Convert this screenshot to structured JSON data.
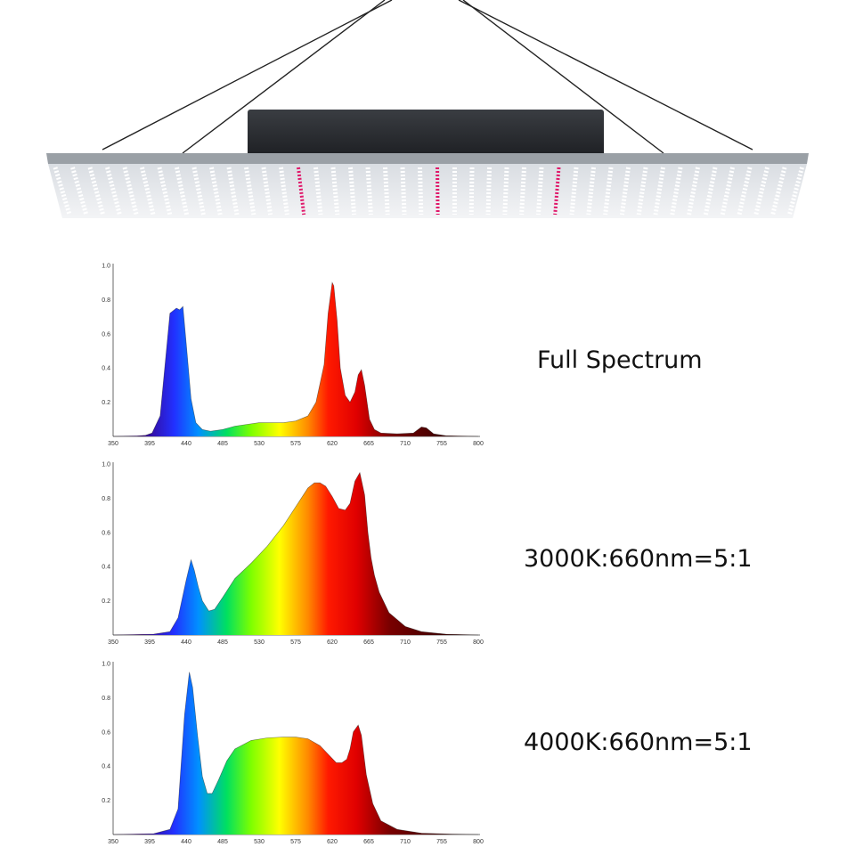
{
  "chart_data": [
    {
      "type": "area",
      "title": "Full Spectrum",
      "xticks": [
        "350",
        "395",
        "440",
        "485",
        "530",
        "575",
        "620",
        "665",
        "710",
        "755",
        "800"
      ],
      "yticks": [
        "1.0",
        "0.8",
        "0.6",
        "0.4",
        "0.2"
      ],
      "xlim": [
        350,
        800
      ],
      "ylim": [
        0,
        1.0
      ],
      "x": [
        350,
        380,
        390,
        398,
        408,
        420,
        428,
        432,
        436,
        440,
        446,
        452,
        460,
        470,
        485,
        500,
        530,
        560,
        575,
        590,
        600,
        610,
        615,
        620,
        622,
        626,
        630,
        636,
        642,
        648,
        652,
        656,
        660,
        666,
        672,
        680,
        700,
        720,
        730,
        736,
        745,
        760,
        800
      ],
      "y": [
        0,
        0.003,
        0.006,
        0.02,
        0.12,
        0.72,
        0.75,
        0.74,
        0.76,
        0.55,
        0.22,
        0.08,
        0.04,
        0.03,
        0.04,
        0.06,
        0.08,
        0.08,
        0.09,
        0.12,
        0.2,
        0.42,
        0.72,
        0.9,
        0.88,
        0.68,
        0.4,
        0.24,
        0.2,
        0.26,
        0.36,
        0.39,
        0.3,
        0.1,
        0.04,
        0.02,
        0.015,
        0.02,
        0.055,
        0.05,
        0.015,
        0.004,
        0
      ]
    },
    {
      "type": "area",
      "title": "3000K:660nm=5:1",
      "xticks": [
        "350",
        "395",
        "440",
        "485",
        "530",
        "575",
        "620",
        "665",
        "710",
        "755",
        "800"
      ],
      "yticks": [
        "1.0",
        "0.8",
        "0.6",
        "0.4",
        "0.2"
      ],
      "xlim": [
        350,
        800
      ],
      "ylim": [
        0,
        1.0
      ],
      "x": [
        350,
        400,
        420,
        430,
        440,
        446,
        450,
        455,
        460,
        468,
        475,
        485,
        500,
        520,
        540,
        560,
        575,
        590,
        598,
        605,
        612,
        620,
        628,
        636,
        642,
        648,
        654,
        660,
        664,
        668,
        672,
        678,
        690,
        710,
        730,
        760,
        800
      ],
      "y": [
        0,
        0.005,
        0.02,
        0.1,
        0.32,
        0.44,
        0.38,
        0.28,
        0.2,
        0.14,
        0.15,
        0.22,
        0.33,
        0.42,
        0.52,
        0.64,
        0.75,
        0.86,
        0.89,
        0.89,
        0.87,
        0.81,
        0.74,
        0.73,
        0.77,
        0.9,
        0.95,
        0.82,
        0.6,
        0.45,
        0.35,
        0.25,
        0.13,
        0.05,
        0.02,
        0.005,
        0
      ]
    },
    {
      "type": "area",
      "title": "4000K:660nm=5:1",
      "xticks": [
        "350",
        "395",
        "440",
        "485",
        "530",
        "575",
        "620",
        "665",
        "710",
        "755",
        "800"
      ],
      "yticks": [
        "1.0",
        "0.8",
        "0.6",
        "0.4",
        "0.2"
      ],
      "xlim": [
        350,
        800
      ],
      "ylim": [
        0,
        1.0
      ],
      "x": [
        350,
        400,
        420,
        430,
        438,
        444,
        448,
        454,
        460,
        466,
        472,
        480,
        490,
        500,
        520,
        540,
        560,
        575,
        590,
        605,
        615,
        625,
        632,
        638,
        642,
        646,
        652,
        656,
        662,
        670,
        680,
        700,
        730,
        770,
        800
      ],
      "y": [
        0,
        0.005,
        0.03,
        0.15,
        0.7,
        0.95,
        0.86,
        0.58,
        0.34,
        0.24,
        0.24,
        0.32,
        0.43,
        0.5,
        0.55,
        0.565,
        0.57,
        0.57,
        0.56,
        0.52,
        0.47,
        0.42,
        0.42,
        0.44,
        0.5,
        0.6,
        0.64,
        0.58,
        0.35,
        0.18,
        0.08,
        0.03,
        0.008,
        0.002,
        0
      ]
    }
  ],
  "colors": {
    "spectrum_stops": [
      "#3b0080",
      "#2230ff",
      "#0090ff",
      "#00e060",
      "#7dff00",
      "#ffff00",
      "#ff8a00",
      "#ff1a00",
      "#e00000",
      "#7a0000",
      "#3a0000"
    ]
  }
}
